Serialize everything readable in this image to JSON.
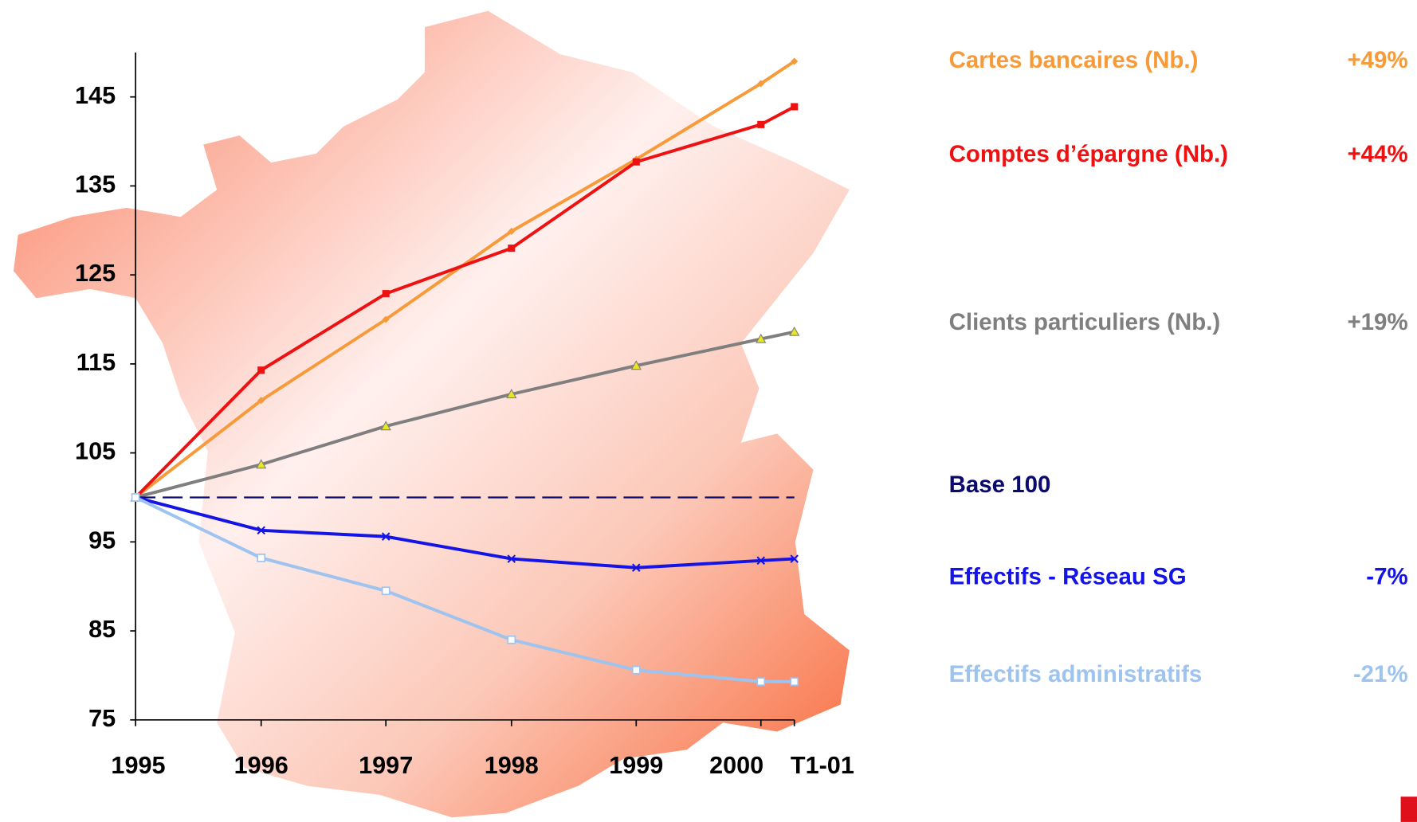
{
  "chart_data": {
    "type": "line",
    "categories": [
      "1995",
      "1996",
      "1997",
      "1998",
      "1999",
      "2000",
      "T1-01"
    ],
    "ylim": [
      75,
      150
    ],
    "yticks": [
      75,
      85,
      95,
      105,
      115,
      125,
      135,
      145
    ],
    "series": [
      {
        "name": "Cartes bancaires (Nb.)",
        "change": "+49%",
        "color": "#f79a3a",
        "marker": "diamond",
        "values": [
          100,
          110.9,
          120.0,
          129.9,
          138.0,
          146.5,
          149.0
        ]
      },
      {
        "name": "Comptes d’épargne (Nb.)",
        "change": "+44%",
        "color": "#ee1111",
        "marker": "square",
        "values": [
          100,
          114.3,
          122.9,
          128.0,
          137.7,
          141.9,
          143.9
        ]
      },
      {
        "name": "Clients particuliers (Nb.)",
        "change": "+19%",
        "color": "#7f7f7f",
        "marker": "triangle",
        "values": [
          100,
          103.7,
          108.0,
          111.6,
          114.8,
          117.8,
          118.6
        ]
      },
      {
        "name": "Base 100",
        "color": "#0a0a6e",
        "marker": "none",
        "dashed": true,
        "values": [
          100,
          100,
          100,
          100,
          100,
          100,
          100
        ]
      },
      {
        "name": "Effectifs - Réseau SG",
        "change": "-7%",
        "color": "#1414e6",
        "marker": "cross",
        "values": [
          100,
          96.3,
          95.6,
          93.1,
          92.1,
          92.9,
          93.1
        ]
      },
      {
        "name": "Effectifs administratifs",
        "change": "-21%",
        "color": "#9ec3ee",
        "marker": "hollow-square",
        "values": [
          100,
          93.2,
          89.5,
          84.0,
          80.6,
          79.3,
          79.3
        ]
      }
    ]
  }
}
